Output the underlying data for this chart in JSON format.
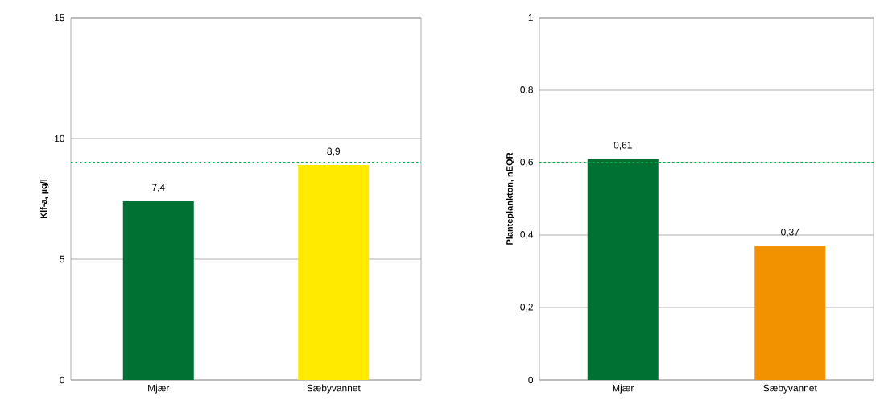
{
  "chart_data": [
    {
      "type": "bar",
      "ylabel": "Klf-a, µg/l",
      "categories": [
        "Mjær",
        "Sæbyvannet"
      ],
      "values": [
        7.4,
        8.9
      ],
      "colors": [
        "#007033",
        "#ffea00"
      ],
      "value_labels": [
        "7,4",
        "8,9"
      ],
      "ylim": [
        0,
        15
      ],
      "yticks": [
        0,
        5,
        10,
        15
      ],
      "grid": "y",
      "ref_lines": [
        {
          "axis": "y",
          "value": 9,
          "color": "#00b050",
          "line_style": "dotted"
        }
      ]
    },
    {
      "type": "bar",
      "ylabel": "Planteplankton, nEQR",
      "categories": [
        "Mjær",
        "Sæbyvannet"
      ],
      "values": [
        0.61,
        0.37
      ],
      "colors": [
        "#007033",
        "#f39200"
      ],
      "value_labels": [
        "0,61",
        "0,37"
      ],
      "ylim": [
        0,
        1
      ],
      "yticks": [
        0,
        {
          "value": 0.2,
          "label": "0,2"
        },
        {
          "value": 0.4,
          "label": "0,4"
        },
        {
          "value": 0.6,
          "label": "0,6"
        },
        {
          "value": 0.8,
          "label": "0,8"
        },
        1
      ],
      "grid": "y",
      "ref_lines": [
        {
          "axis": "y",
          "value": 0.6,
          "color": "#00b050",
          "line_style": "dotted"
        }
      ]
    }
  ]
}
